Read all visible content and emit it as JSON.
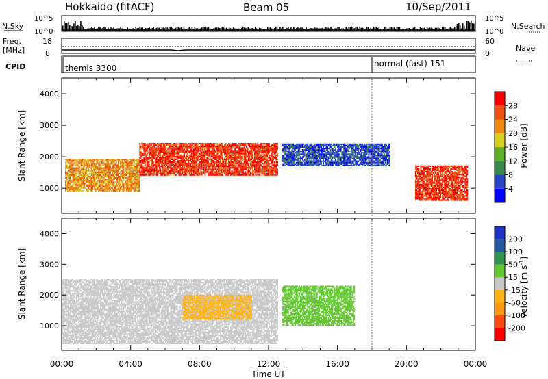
{
  "header": {
    "title": "Hokkaido (fitACF)",
    "beam": "Beam 05",
    "date": "10/Sep/2011"
  },
  "panels": {
    "nsky": {
      "left_label": "N.Sky",
      "right_label": "N.Search",
      "left_ticks": [
        "10^5",
        "10^0"
      ],
      "right_ticks": [
        "10^5",
        "10^0"
      ]
    },
    "freq": {
      "left_label_1": "Freq.",
      "left_label_2": "[MHz]",
      "right_label": "Nave",
      "left_ticks": [
        "18",
        "8"
      ],
      "right_ticks": [
        "60",
        "0"
      ]
    },
    "cpid": {
      "label": "CPID",
      "modes": [
        {
          "name": "themis 3300",
          "start_hour": 0
        },
        {
          "name": "normal (fast) 151",
          "start_hour": 18
        }
      ]
    }
  },
  "time_ticks": [
    "00:00",
    "04:00",
    "08:00",
    "12:00",
    "16:00",
    "20:00",
    "00:00"
  ],
  "xlabel": "Time UT",
  "chart_data": [
    {
      "type": "heatmap",
      "quantity": "power",
      "ylabel": "Slant Range [km]",
      "xlim": [
        0,
        24
      ],
      "ylim": [
        200,
        4500
      ],
      "yticks": [
        "4000",
        "3000",
        "2000",
        "1000"
      ],
      "colorbar": {
        "label": "Power [dB]",
        "range": [
          0,
          32
        ],
        "tick_labels": [
          "28",
          "24",
          "20",
          "16",
          "12",
          "8",
          "4"
        ],
        "colors": [
          "#0000ff",
          "#2a46c8",
          "#3a8a50",
          "#5fb02a",
          "#d8d020",
          "#f08a10",
          "#f05010",
          "#ff0000"
        ]
      },
      "features": [
        {
          "name": "main-band-west",
          "hours": [
            0.2,
            4.5
          ],
          "range_km": [
            900,
            1900
          ],
          "power_db": 22
        },
        {
          "name": "main-band-east",
          "hours": [
            4.5,
            12.5
          ],
          "range_km": [
            1400,
            2400
          ],
          "power_db": 28
        },
        {
          "name": "scatter-16h",
          "hours": [
            12.8,
            19
          ],
          "range_km": [
            1700,
            2400
          ],
          "power_db": 6
        },
        {
          "name": "band-20h",
          "hours": [
            20.5,
            23.5
          ],
          "range_km": [
            600,
            1700
          ],
          "power_db": 28
        }
      ]
    },
    {
      "type": "heatmap",
      "quantity": "velocity",
      "ylabel": "Slant Range [km]",
      "xlim": [
        0,
        24
      ],
      "ylim": [
        200,
        4500
      ],
      "yticks": [
        "4000",
        "3000",
        "2000",
        "1000"
      ],
      "colorbar": {
        "label": "Velocity [m s",
        "label_sup": "-1",
        "label_end": "]",
        "range": [
          -250,
          250
        ],
        "tick_labels": [
          "200",
          "100",
          "50",
          "15",
          "-15",
          "-50",
          "-100",
          "-200"
        ],
        "colors": [
          "#ff0000",
          "#ff4a10",
          "#ff9a10",
          "#ffb414",
          "#c8c8c8",
          "#64c832",
          "#329650",
          "#285aa0",
          "#1e32c8"
        ]
      },
      "features": [
        {
          "name": "ground-scatter",
          "hours": [
            0,
            12.5
          ],
          "range_km": [
            400,
            2500
          ],
          "velocity_ms": 0
        },
        {
          "name": "positive-flow-16h",
          "hours": [
            12.8,
            17
          ],
          "range_km": [
            1000,
            2300
          ],
          "velocity_ms": 60
        },
        {
          "name": "negative-flow-09h",
          "hours": [
            7,
            11
          ],
          "range_km": [
            1200,
            2000
          ],
          "velocity_ms": -40
        }
      ]
    }
  ]
}
